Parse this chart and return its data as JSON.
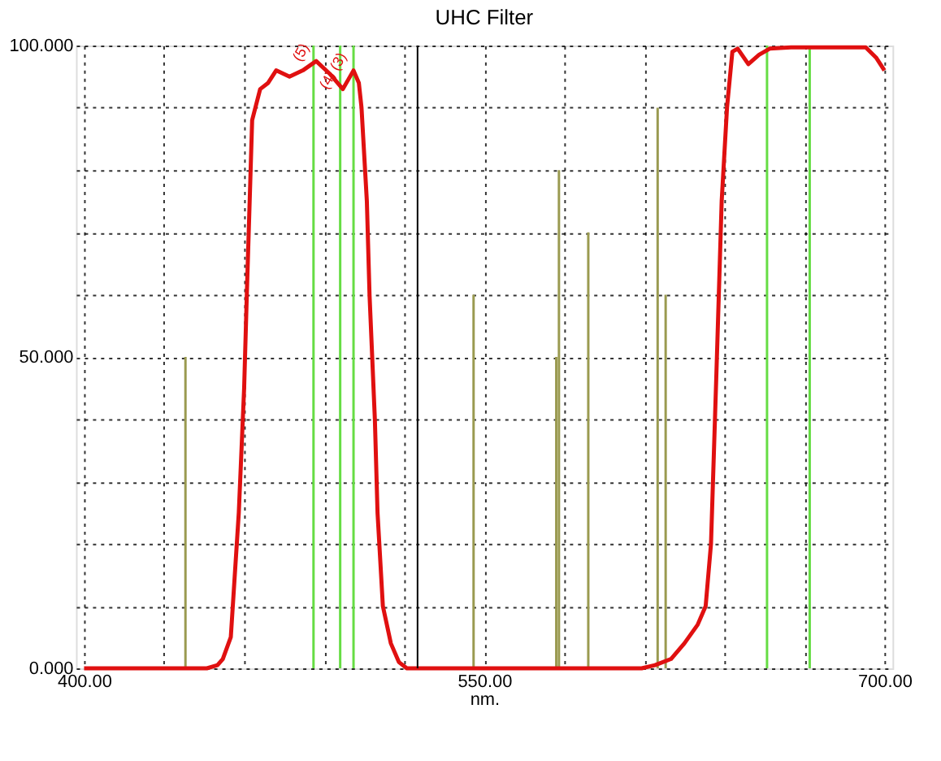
{
  "chart_data": {
    "type": "line",
    "title": "UHC Filter",
    "xlabel": "nm.",
    "xlim": [
      400,
      700
    ],
    "ylim": [
      0,
      100
    ],
    "xticks": [
      {
        "value": 400,
        "label": "400.00"
      },
      {
        "value": 430,
        "label": null
      },
      {
        "value": 460,
        "label": null
      },
      {
        "value": 490,
        "label": null
      },
      {
        "value": 520,
        "label": null
      },
      {
        "value": 550,
        "label": "550.00"
      },
      {
        "value": 580,
        "label": null
      },
      {
        "value": 610,
        "label": null
      },
      {
        "value": 640,
        "label": null
      },
      {
        "value": 670,
        "label": null
      },
      {
        "value": 700,
        "label": "700.00"
      }
    ],
    "yticks": [
      {
        "value": 0,
        "label": "0.000"
      },
      {
        "value": 10,
        "label": null
      },
      {
        "value": 20,
        "label": null
      },
      {
        "value": 30,
        "label": null
      },
      {
        "value": 40,
        "label": null
      },
      {
        "value": 50,
        "label": "50.000"
      },
      {
        "value": 60,
        "label": null
      },
      {
        "value": 70,
        "label": null
      },
      {
        "value": 80,
        "label": null
      },
      {
        "value": 90,
        "label": null
      },
      {
        "value": 100,
        "label": "100.000"
      }
    ],
    "grid": true,
    "line_style": "solid",
    "marker": "none",
    "series": [
      {
        "type": "bar",
        "color": "#66dd44",
        "x": [
          486,
          496,
          501,
          656,
          672
        ],
        "values": [
          100,
          100,
          100,
          100,
          100
        ]
      },
      {
        "type": "bar",
        "color": "#9a9a50",
        "x": [
          438,
          546,
          577,
          578,
          589,
          615,
          618
        ],
        "values": [
          50,
          60,
          50,
          80,
          70,
          90,
          60
        ]
      },
      {
        "color": "#e01010",
        "x": [
          400,
          446,
          450,
          452,
          455,
          458,
          460,
          461,
          463,
          466,
          469,
          472,
          477,
          482,
          487,
          492,
          495,
          497,
          499,
          501,
          503,
          504,
          506,
          507,
          509,
          510,
          512,
          515,
          518,
          521,
          525,
          550,
          580,
          609,
          614,
          620,
          625,
          630,
          633,
          635,
          637,
          639,
          641,
          643,
          645,
          649,
          653,
          657,
          665,
          680,
          693,
          697,
          700
        ],
        "values": [
          0,
          0,
          0.5,
          1.5,
          5,
          25,
          45,
          60,
          88,
          93,
          94,
          96,
          95,
          96,
          97.5,
          95.5,
          94,
          93,
          94.5,
          96,
          94,
          90,
          75,
          60,
          40,
          25,
          10,
          4,
          1,
          0,
          0,
          0,
          0,
          0,
          0.5,
          1.5,
          4,
          7,
          10,
          20,
          47,
          75,
          90,
          99,
          99.5,
          97,
          98.5,
          99.5,
          99.7,
          99.7,
          99.7,
          98,
          96
        ]
      }
    ],
    "ref_lines": [
      {
        "axis": "x",
        "value": 525,
        "color": "#000000"
      }
    ],
    "annotations": [
      {
        "text": "(5)",
        "x": 487,
        "y": 97.5
      },
      {
        "text": "(4)",
        "x": 497,
        "y": 93
      },
      {
        "text": "(3)",
        "x": 501,
        "y": 96
      }
    ]
  }
}
